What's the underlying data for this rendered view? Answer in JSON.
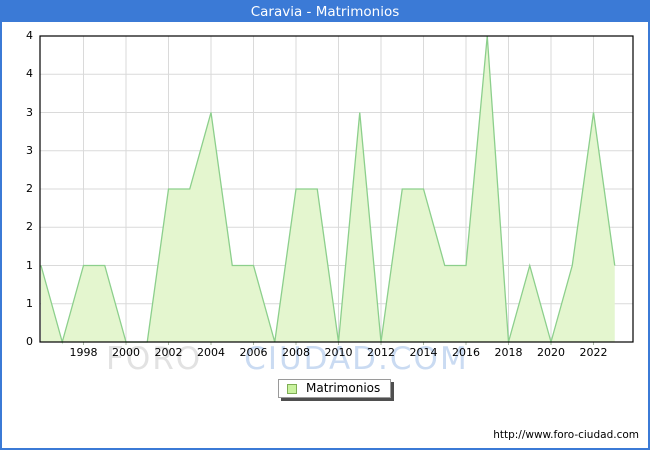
{
  "title": "Caravia - Matrimonios",
  "watermark": {
    "part1": "FORO",
    "part2": "CIUDAD.COM"
  },
  "legend": {
    "label": "Matrimonios"
  },
  "footer_url": "http://www.foro-ciudad.com",
  "colors": {
    "frame_blue": "#3b7ad6",
    "title_text": "#ffffff",
    "plot_border": "#000000",
    "grid": "#dadada",
    "area_fill": "#e4f6cf",
    "area_stroke": "#8ccf8c",
    "tick": "#a8b8a0",
    "legend_square_fill": "#c9f29e",
    "legend_square_border": "#7fae55",
    "watermark_gray": "#d9d9d9",
    "watermark_blue": "#b9cfee"
  },
  "chart_data": {
    "type": "area",
    "title": "Caravia - Matrimonios",
    "series_name": "Matrimonios",
    "x": [
      1996,
      1997,
      1998,
      1999,
      2000,
      2001,
      2002,
      2003,
      2004,
      2005,
      2006,
      2007,
      2008,
      2009,
      2010,
      2011,
      2012,
      2013,
      2014,
      2015,
      2016,
      2017,
      2018,
      2019,
      2020,
      2021,
      2022,
      2023
    ],
    "values": [
      1,
      0,
      1,
      1,
      0,
      0,
      2,
      2,
      3,
      1,
      1,
      0,
      2,
      2,
      0,
      3,
      0,
      2,
      2,
      1,
      1,
      4,
      0,
      1,
      0,
      1,
      3,
      1
    ],
    "xlim": [
      1996,
      2023.9
    ],
    "ylim": [
      0,
      4
    ],
    "x_tick_years": [
      1998,
      2000,
      2002,
      2004,
      2006,
      2008,
      2010,
      2012,
      2014,
      2016,
      2018,
      2020,
      2022
    ],
    "x_tick_labels": [
      "1998",
      "2000",
      "2002",
      "2004",
      "2006",
      "2008",
      "2010",
      "2012",
      "2014",
      "2016",
      "2018",
      "2020",
      "2022"
    ],
    "y_tick_values": [
      4,
      3.5,
      3,
      2.5,
      2,
      1.5,
      1,
      0.5,
      0
    ],
    "y_tick_labels": [
      "4",
      "4",
      "3",
      "3",
      "2",
      "2",
      "1",
      "1",
      "0"
    ],
    "grid": true,
    "legend_position": "bottom-center"
  }
}
